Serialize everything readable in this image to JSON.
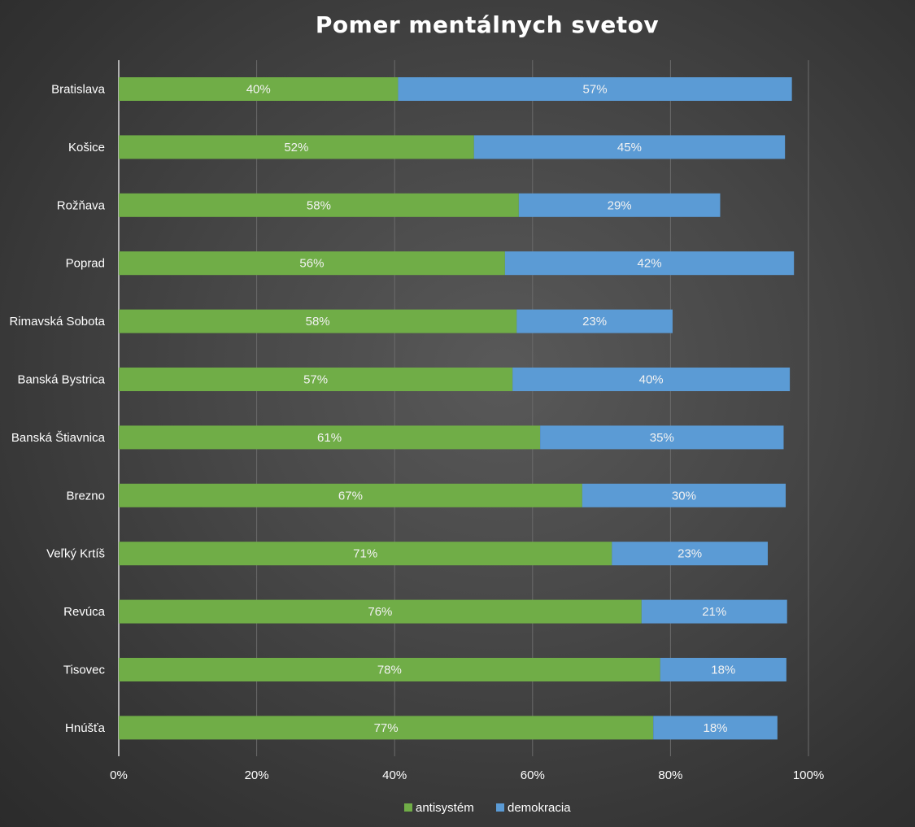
{
  "chart_data": {
    "type": "bar",
    "orientation": "horizontal",
    "stacked": true,
    "title": "Pomer mentálnych svetov",
    "categories": [
      "Bratislava",
      "Košice",
      "Rožňava",
      "Poprad",
      "Rimavská Sobota",
      "Banská Bystrica",
      "Banská Štiavnica",
      "Brezno",
      "Veľký Krtíš",
      "Revúca",
      "Tisovec",
      "Hnúšťa"
    ],
    "series": [
      {
        "name": "antisystém",
        "color": "#70ad47",
        "values": [
          40.5,
          51.5,
          58,
          56,
          57.7,
          57.1,
          61.1,
          67.2,
          71.5,
          75.8,
          78.5,
          77.5
        ],
        "labels": [
          "40%",
          "52%",
          "58%",
          "56%",
          "58%",
          "57%",
          "61%",
          "67%",
          "71%",
          "76%",
          "78%",
          "77%"
        ]
      },
      {
        "name": "demokracia",
        "color": "#5b9bd5",
        "values": [
          57.1,
          45.1,
          29.2,
          41.9,
          22.6,
          40.2,
          35.3,
          29.5,
          22.6,
          21.1,
          18.3,
          18.0
        ],
        "labels": [
          "57%",
          "45%",
          "29%",
          "42%",
          "23%",
          "40%",
          "35%",
          "30%",
          "23%",
          "21%",
          "18%",
          "18%"
        ]
      }
    ],
    "xlim": [
      0,
      100
    ],
    "xticks": [
      "0%",
      "20%",
      "40%",
      "60%",
      "80%",
      "100%"
    ],
    "grid": true,
    "legend": "bottom"
  }
}
